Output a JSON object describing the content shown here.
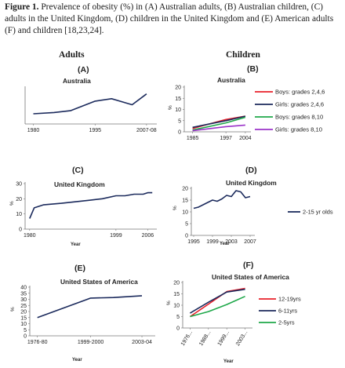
{
  "caption": {
    "label": "Figure 1.",
    "text": "Prevalence of obesity (%) in (A) Australian adults, (B) Australian children, (C) adults in the United Kingdom, (D) children in the United Kingdom and (E) American adults (F) and children [18,23,24]."
  },
  "column_headers": {
    "left": "Adults",
    "right": "Children"
  },
  "colors": {
    "navy": "#1b2a5c",
    "red": "#e8202a",
    "green": "#1fa84a",
    "purple": "#9b34c9",
    "axis": "#777777"
  },
  "chart_data": [
    {
      "panel": "(A)",
      "type": "line",
      "title": "Australia",
      "xlabel": "",
      "ylabel": "",
      "xlim": [
        1978,
        2010
      ],
      "ylim": [
        0,
        30
      ],
      "xticks": [
        {
          "v": 1980,
          "label": "1980"
        },
        {
          "v": 1995,
          "label": "1995"
        },
        {
          "v": 2007.5,
          "label": "2007-08"
        }
      ],
      "yticks": [],
      "series": [
        {
          "color": "#1b2a5c",
          "x": [
            1980,
            1985,
            1989,
            1995,
            1999,
            2004,
            2007.5
          ],
          "y": [
            8.5,
            9.5,
            11,
            19,
            21,
            16,
            25
          ]
        }
      ],
      "legend": []
    },
    {
      "panel": "(B)",
      "type": "line",
      "title": "Australia",
      "xlabel": "",
      "ylabel": "%",
      "xlim": [
        1982,
        2006
      ],
      "ylim": [
        0,
        20
      ],
      "xticks": [
        {
          "v": 1985,
          "label": "1985"
        },
        {
          "v": 1997,
          "label": "1997"
        },
        {
          "v": 2004,
          "label": "2004"
        }
      ],
      "yticks": [
        0,
        5,
        10,
        15,
        20
      ],
      "series": [
        {
          "name": "Boys: grades 2,4,6",
          "color": "#e8202a",
          "x": [
            1985,
            1997,
            2004
          ],
          "y": [
            1.5,
            5.5,
            7
          ]
        },
        {
          "name": "Girls: grades 2,4,6",
          "color": "#1b2a5c",
          "x": [
            1985,
            1997,
            2004
          ],
          "y": [
            2,
            5,
            7
          ]
        },
        {
          "name": "Boys: grades 8,10",
          "color": "#1fa84a",
          "x": [
            1985,
            1997,
            2004
          ],
          "y": [
            0.8,
            4,
            6.5
          ]
        },
        {
          "name": "Girls: grades 8,10",
          "color": "#9b34c9",
          "x": [
            1985,
            1997,
            2004
          ],
          "y": [
            0.5,
            2.3,
            3
          ]
        }
      ],
      "legend": [
        {
          "name": "Boys: grades 2,4,6",
          "color": "#e8202a"
        },
        {
          "name": "Girls: grades 2,4,6",
          "color": "#1b2a5c"
        },
        {
          "name": "Boys: grades 8,10",
          "color": "#1fa84a"
        },
        {
          "name": "Girls: grades 8,10",
          "color": "#9b34c9"
        }
      ]
    },
    {
      "panel": "(C)",
      "type": "line",
      "title": "United Kingdom",
      "xlabel": "Year",
      "ylabel": "%",
      "xlim": [
        1979,
        2008
      ],
      "ylim": [
        0,
        30
      ],
      "xticks": [
        {
          "v": 1980,
          "label": "1980"
        },
        {
          "v": 1999,
          "label": "1999"
        },
        {
          "v": 2006,
          "label": "2006"
        }
      ],
      "yticks": [
        0,
        10,
        20,
        30
      ],
      "series": [
        {
          "color": "#1b2a5c",
          "x": [
            1980,
            1981,
            1983,
            1987,
            1993,
            1996,
            1999,
            2001,
            2003,
            2005,
            2006,
            2007
          ],
          "y": [
            7,
            14,
            16,
            17,
            19,
            20,
            22,
            22,
            23,
            23,
            24,
            24
          ]
        }
      ],
      "legend": []
    },
    {
      "panel": "(D)",
      "type": "line",
      "title": "United Kingdom",
      "xlabel": "Year",
      "ylabel": "%",
      "xlim": [
        1994.5,
        2008
      ],
      "ylim": [
        0,
        20
      ],
      "xticks": [
        {
          "v": 1995,
          "label": "1995"
        },
        {
          "v": 1999,
          "label": "1999"
        },
        {
          "v": 2003,
          "label": "2003"
        },
        {
          "v": 2007,
          "label": "2007"
        }
      ],
      "yticks": [
        0,
        5,
        10,
        15,
        20
      ],
      "series": [
        {
          "name": "2-15 yr olds",
          "color": "#1b2a5c",
          "x": [
            1995,
            1996,
            1997,
            1998,
            1999,
            2000,
            2001,
            2002,
            2003,
            2004,
            2005,
            2006,
            2007
          ],
          "y": [
            11.5,
            12,
            13,
            14,
            15,
            14.5,
            15.5,
            17,
            16.5,
            19,
            18.5,
            16,
            16.5
          ]
        }
      ],
      "legend": [
        {
          "name": "2-15 yr olds",
          "color": "#1b2a5c"
        }
      ]
    },
    {
      "panel": "(E)",
      "type": "line",
      "title": "United States of America",
      "xlabel": "Year",
      "ylabel": "%",
      "xlim": [
        0,
        3.3
      ],
      "ylim": [
        0,
        40
      ],
      "xticks": [
        {
          "v": 0.2,
          "label": "1976-80"
        },
        {
          "v": 1.6,
          "label": "1999-2000"
        },
        {
          "v": 2.95,
          "label": "2003-04"
        }
      ],
      "yticks": [
        0,
        5,
        10,
        15,
        20,
        25,
        30,
        35,
        40
      ],
      "series": [
        {
          "color": "#1b2a5c",
          "x": [
            0.2,
            1.6,
            2.2,
            2.95
          ],
          "y": [
            15,
            31,
            31.5,
            33
          ]
        }
      ],
      "legend": []
    },
    {
      "panel": "(F)",
      "type": "line",
      "title": "United States of America",
      "xlabel": "Year",
      "ylabel": "%",
      "xlim": [
        0.6,
        4.4
      ],
      "ylim": [
        0,
        20
      ],
      "xticks": [
        {
          "v": 1,
          "label": "1976..."
        },
        {
          "v": 2,
          "label": "1988..."
        },
        {
          "v": 3,
          "label": "1999..."
        },
        {
          "v": 4,
          "label": "2003..."
        }
      ],
      "yticks": [
        0,
        5,
        10,
        15,
        20
      ],
      "series": [
        {
          "name": "12-19yrs",
          "color": "#e8202a",
          "x": [
            1,
            2,
            3,
            4
          ],
          "y": [
            5,
            10.5,
            16,
            17.4
          ]
        },
        {
          "name": "6-11yrs",
          "color": "#1b2a5c",
          "x": [
            1,
            2,
            3,
            4
          ],
          "y": [
            6.5,
            11.3,
            15.8,
            17
          ]
        },
        {
          "name": "2-5yrs",
          "color": "#1fa84a",
          "x": [
            1,
            2,
            3,
            4
          ],
          "y": [
            5,
            7.2,
            10.3,
            13.9
          ]
        }
      ],
      "legend": [
        {
          "name": "12-19yrs",
          "color": "#e8202a"
        },
        {
          "name": "6-11yrs",
          "color": "#1b2a5c"
        },
        {
          "name": "2-5yrs",
          "color": "#1fa84a"
        }
      ]
    }
  ]
}
